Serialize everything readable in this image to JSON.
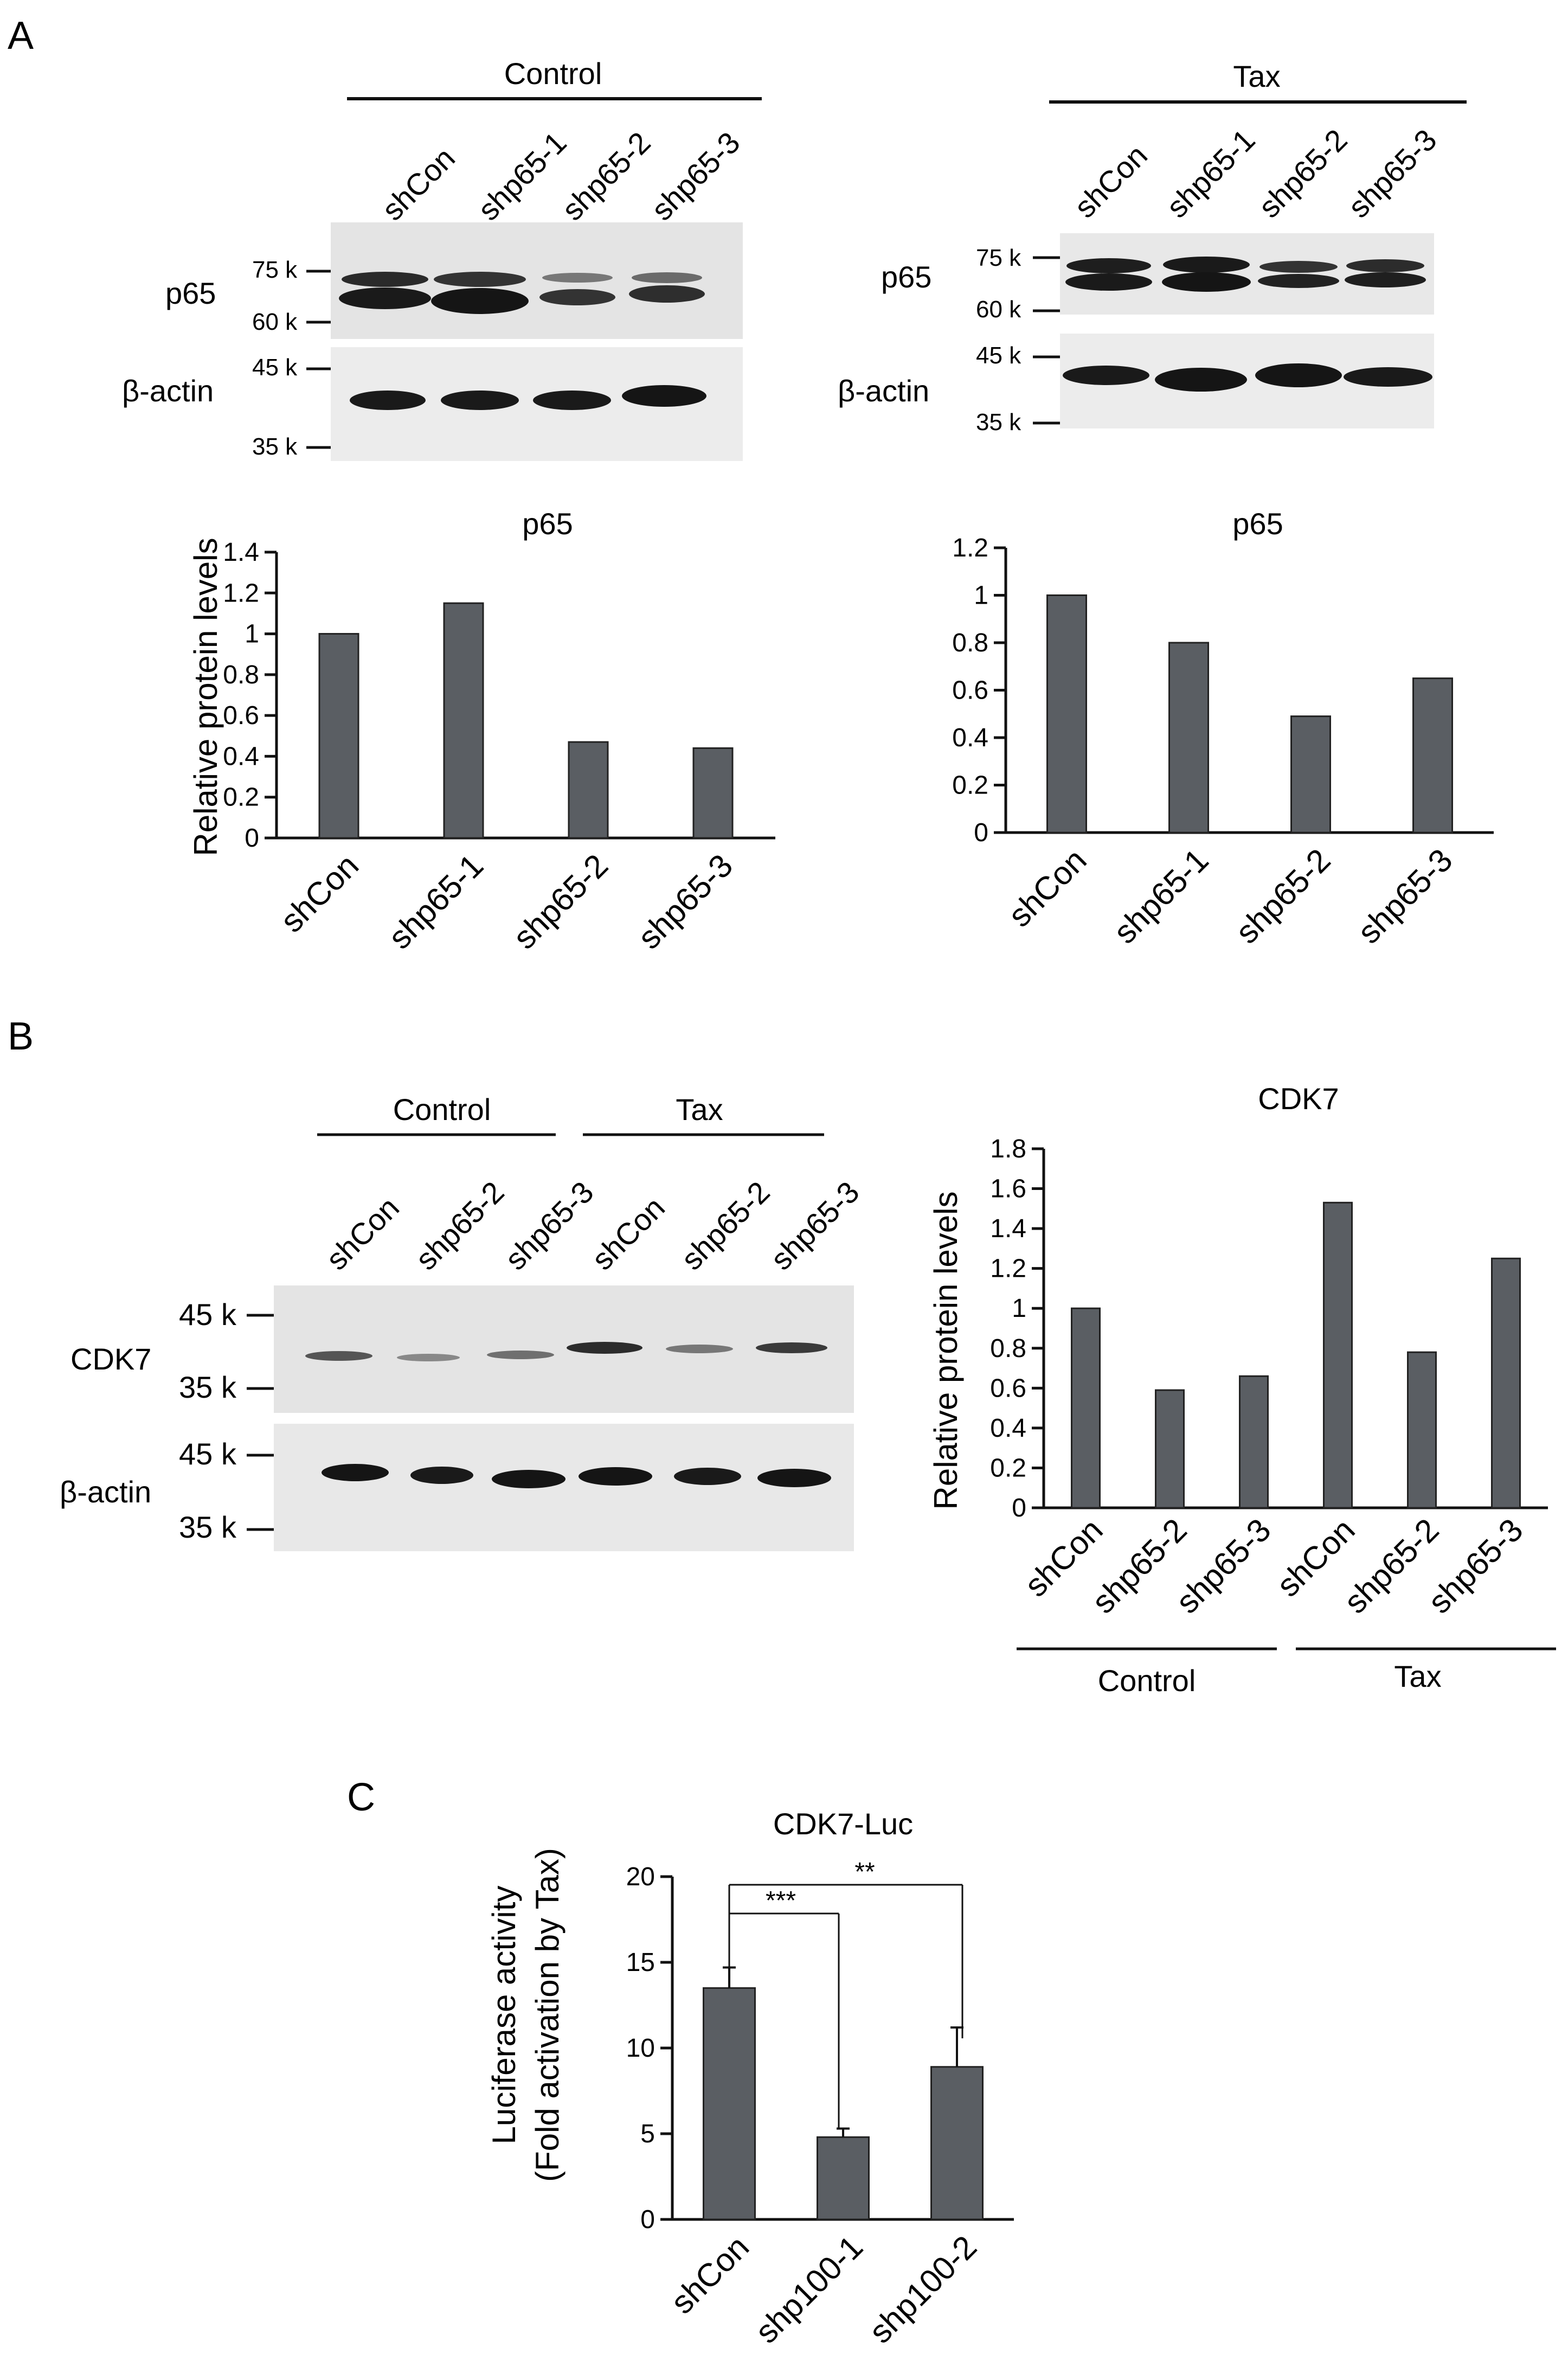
{
  "panels": {
    "a": "A",
    "b": "B",
    "c": "C"
  },
  "colors": {
    "bar": "#5a5e63",
    "blot_bg": "#e6e6e6",
    "band": "#1a1a1a",
    "axis": "#111111"
  },
  "blot_a_control": {
    "group": "Control",
    "lanes": [
      "shCon",
      "shp65-1",
      "shp65-2",
      "shp65-3"
    ],
    "rows": [
      "p65",
      "β-actin"
    ],
    "markers_p65": [
      "75 k",
      "60 k"
    ],
    "markers_actin": [
      "45 k",
      "35 k"
    ]
  },
  "blot_a_tax": {
    "group": "Tax",
    "lanes": [
      "shCon",
      "shp65-1",
      "shp65-2",
      "shp65-3"
    ],
    "rows": [
      "p65",
      "β-actin"
    ],
    "markers_p65": [
      "75 k",
      "60 k"
    ],
    "markers_actin": [
      "45 k",
      "35 k"
    ]
  },
  "blot_b": {
    "groups": [
      "Control",
      "Tax"
    ],
    "lanes": [
      "shCon",
      "shp65-2",
      "shp65-3",
      "shCon",
      "shp65-2",
      "shp65-3"
    ],
    "rows": [
      "CDK7",
      "β-actin"
    ],
    "markers_cdk7": [
      "45 k",
      "35 k"
    ],
    "markers_actin": [
      "45 k",
      "35 k"
    ]
  },
  "chart_data": [
    {
      "type": "bar",
      "title": "p65",
      "ylabel": "Relative protein levels",
      "categories": [
        "shCon",
        "shp65-1",
        "shp65-2",
        "shp65-3"
      ],
      "values": [
        1.0,
        1.15,
        0.47,
        0.44
      ],
      "ylim": [
        0,
        1.4
      ],
      "yticks": [
        "0",
        "0.2",
        "0.4",
        "0.6",
        "0.8",
        "1",
        "1.2",
        "1.4"
      ]
    },
    {
      "type": "bar",
      "title": "p65",
      "ylabel": "",
      "categories": [
        "shCon",
        "shp65-1",
        "shp65-2",
        "shp65-3"
      ],
      "values": [
        1.0,
        0.8,
        0.49,
        0.65
      ],
      "ylim": [
        0,
        1.2
      ],
      "yticks": [
        "0",
        "0.2",
        "0.4",
        "0.6",
        "0.8",
        "1",
        "1.2"
      ]
    },
    {
      "type": "bar",
      "title": "CDK7",
      "ylabel": "Relative protein levels",
      "categories": [
        "shCon",
        "shp65-2",
        "shp65-3",
        "shCon",
        "shp65-2",
        "shp65-3"
      ],
      "groups": [
        "Control",
        "Tax"
      ],
      "values": [
        1.0,
        0.59,
        0.66,
        1.53,
        0.78,
        1.25
      ],
      "ylim": [
        0,
        1.8
      ],
      "yticks": [
        "0",
        "0.2",
        "0.4",
        "0.6",
        "0.8",
        "1",
        "1.2",
        "1.4",
        "1.6",
        "1.8"
      ]
    },
    {
      "type": "bar",
      "title": "CDK7-Luc",
      "ylabel_lines": [
        "Luciferase activity",
        "(Fold activation by Tax)"
      ],
      "categories": [
        "shCon",
        "shp100-1",
        "shp100-2"
      ],
      "values": [
        13.5,
        4.8,
        8.9
      ],
      "errors": [
        1.2,
        0.5,
        2.3
      ],
      "ylim": [
        0,
        20
      ],
      "yticks": [
        "0",
        "5",
        "10",
        "15",
        "20"
      ],
      "significance": [
        "***",
        "**"
      ]
    }
  ]
}
